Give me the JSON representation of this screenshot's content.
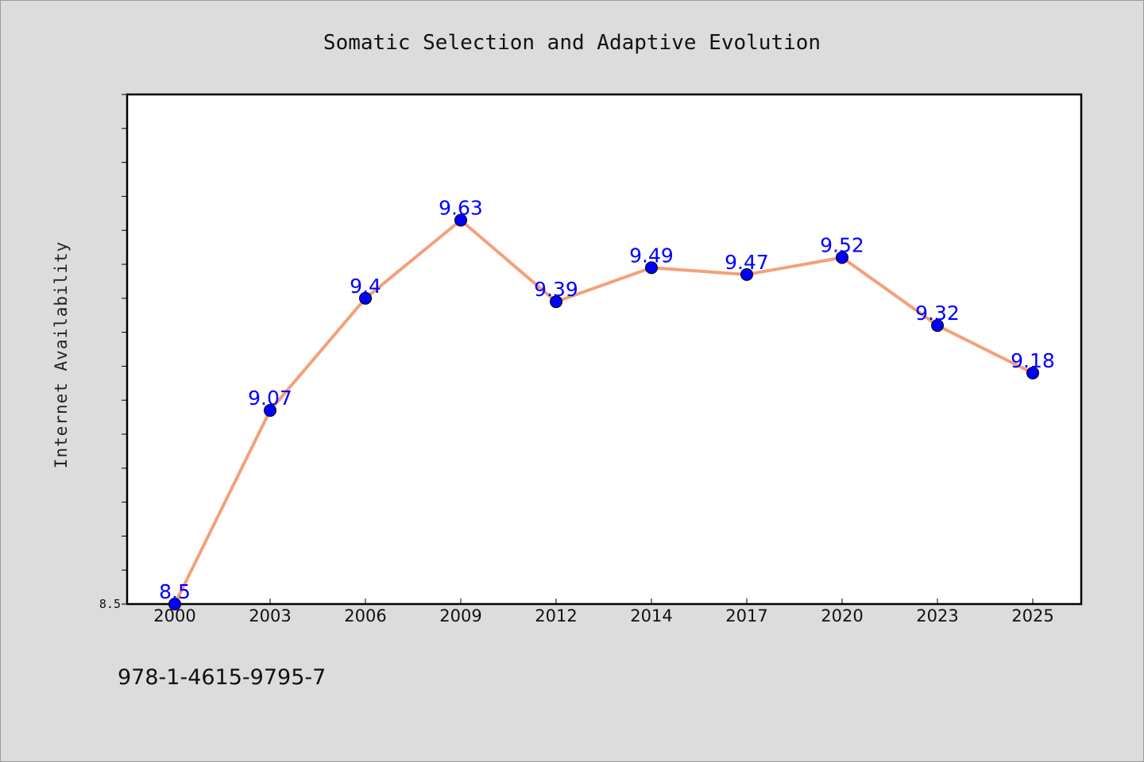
{
  "chart_data": {
    "type": "line",
    "title": "Somatic Selection and Adaptive Evolution",
    "ylabel": "Internet Availability",
    "xlabel": "",
    "categories": [
      "2000",
      "2003",
      "2006",
      "2009",
      "2012",
      "2014",
      "2017",
      "2020",
      "2023",
      "2025"
    ],
    "series": [
      {
        "values": [
          8.5,
          9.07,
          9.4,
          9.63,
          9.39,
          9.49,
          9.47,
          9.52,
          9.32,
          9.18
        ],
        "labels": [
          "8.5",
          "9.07",
          "9.4",
          "9.63",
          "9.39",
          "9.49",
          "9.47",
          "9.52",
          "9.32",
          "9.18"
        ]
      }
    ],
    "ylim": [
      8.5,
      10.0
    ],
    "y_tick_labels": [
      "8.5"
    ],
    "grid": false,
    "colors": {
      "line": "#f4a07a",
      "marker": "#0000ff",
      "data_label": "#0000ff",
      "plot_background": "#ffffff",
      "figure_background": "#dcdcdc"
    }
  },
  "footer": {
    "isbn": "978-1-4615-9795-7"
  }
}
